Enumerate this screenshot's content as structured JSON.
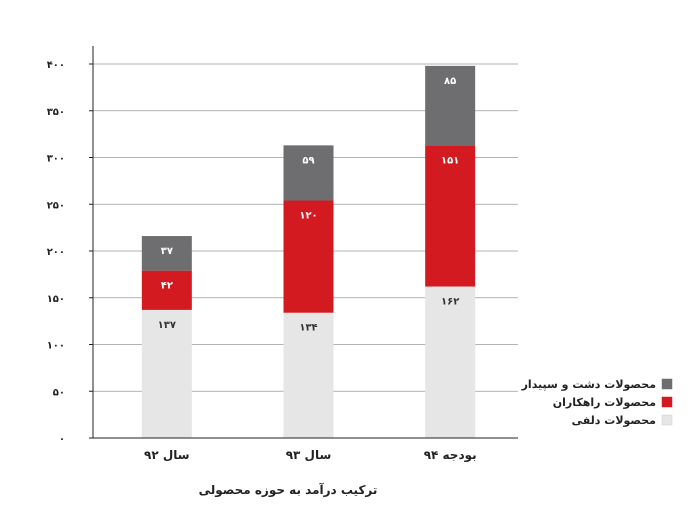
{
  "chart_data": {
    "type": "bar",
    "stacked": true,
    "categories": [
      "سال ۹۲",
      "سال ۹۳",
      "بودجه ۹۴"
    ],
    "series": [
      {
        "name": "محصولات دلفی",
        "color": "#e6e6e6",
        "label_color": "#333333",
        "values": [
          137,
          134,
          162
        ],
        "labels": [
          "۱۳۷",
          "۱۳۴",
          "۱۶۲"
        ]
      },
      {
        "name": "محصولات راهکاران",
        "color": "#d21a20",
        "label_color": "#ffffff",
        "values": [
          42,
          120,
          151
        ],
        "labels": [
          "۴۲",
          "۱۲۰",
          "۱۵۱"
        ]
      },
      {
        "name": "محصولات دشت و سپیدار",
        "color": "#6e6e70",
        "label_color": "#ffffff",
        "values": [
          37,
          59,
          85
        ],
        "labels": [
          "۳۷",
          "۵۹",
          "۸۵"
        ]
      }
    ],
    "ylim": [
      0,
      400
    ],
    "yticks": [
      0,
      50,
      100,
      150,
      200,
      250,
      300,
      350,
      400
    ],
    "ytick_labels": [
      "۰",
      "۵۰",
      "۱۰۰",
      "۱۵۰",
      "۲۰۰",
      "۲۵۰",
      "۳۰۰",
      "۳۵۰",
      "۴۰۰"
    ],
    "grid": true,
    "legend_position": "bottom-right",
    "legend_order": [
      2,
      1,
      0
    ],
    "caption": "ترکیب درآمد به حوزه محصولی"
  }
}
